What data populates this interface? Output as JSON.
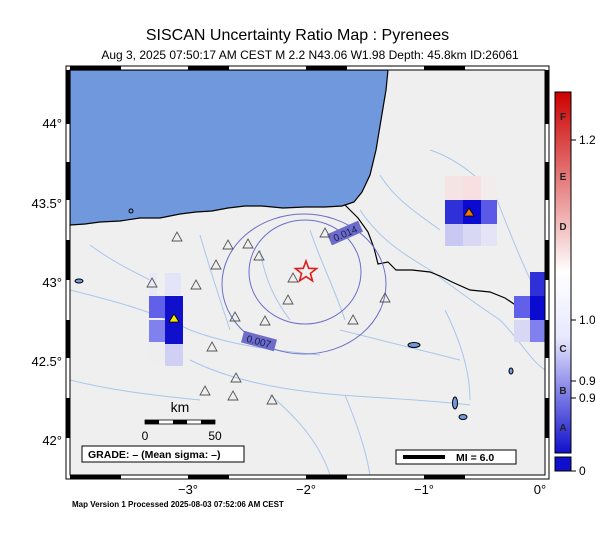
{
  "title": "SISCAN Uncertainty Ratio Map : Pyrenees",
  "subtitle": "Aug  3, 2025 07:50:17 AM CEST   M 2.2   N43.06 W1.98   Depth: 45.8km   ID:26061",
  "map": {
    "lon_ticks": [
      "−3°",
      "−2°",
      "−1°",
      "0°"
    ],
    "lat_ticks": [
      "44°",
      "43.5°",
      "43°",
      "42.5°",
      "42°"
    ],
    "epicenter": {
      "lat": 43.06,
      "lon": -1.98
    },
    "contour_labels": [
      "0.014",
      "0.007"
    ],
    "scale_bar": {
      "label": "km",
      "ticks": [
        "0",
        "50"
      ]
    },
    "grade_text": "GRADE: – (Mean sigma: –)",
    "mi_legend": "MI = 6.0",
    "colors": {
      "water": "#6f99dc",
      "land": "#efefef",
      "rivers": "#a9c6ec",
      "epicenter": "#e01c1c",
      "contour": "#6d6dc9"
    }
  },
  "colorbar": {
    "letters": [
      "F",
      "E",
      "D",
      "C",
      "B",
      "A"
    ],
    "values": [
      "1.2",
      "1.0",
      "0.9",
      "0.9",
      "0"
    ],
    "colors": {
      "top": "#cc0000",
      "mid": "#ffffff",
      "bottom": "#0000cc"
    }
  },
  "footer": "Map Version 1 Processed 2025-08-03 07:52:06 AM CEST"
}
